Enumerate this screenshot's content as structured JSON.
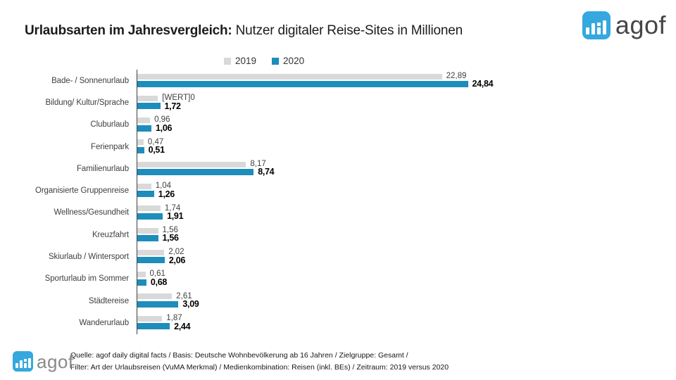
{
  "title": {
    "bold": "Urlaubsarten im Jahresvergleich:",
    "regular": " Nutzer digitaler Reise-Sites in Millionen"
  },
  "logo": {
    "text": "agof",
    "brand_blue": "#35a8df"
  },
  "legend": {
    "items": [
      {
        "label": "2019",
        "color": "#d9d9d9"
      },
      {
        "label": "2020",
        "color": "#1d8dbb"
      }
    ]
  },
  "chart_data": {
    "type": "bar",
    "orientation": "horizontal",
    "title": "Urlaubsarten im Jahresvergleich: Nutzer digitaler Reise-Sites in Millionen",
    "unit": "Millionen Nutzer",
    "xlim": [
      0,
      25.5
    ],
    "grid": false,
    "legend_position": "top-center",
    "categories": [
      "Bade- / Sonnenurlaub",
      "Bildung/ Kultur/Sprache",
      "Cluburlaub",
      "Ferienpark",
      "Familienurlaub",
      "Organisierte Gruppenreise",
      "Wellness/Gesundheit",
      "Kreuzfahrt",
      "Skiurlaub / Wintersport",
      "Sporturlaub im Sommer",
      "Städtereise",
      "Wanderurlaub"
    ],
    "series": [
      {
        "name": "2019",
        "color": "#d9d9d9",
        "values": [
          22.89,
          1.55,
          0.96,
          0.47,
          8.17,
          1.04,
          1.74,
          1.56,
          2.02,
          0.61,
          2.61,
          1.87
        ],
        "labels": [
          "22,89",
          "[WERT]0",
          "0,96",
          "0,47",
          "8,17",
          "1,04",
          "1,74",
          "1,56",
          "2,02",
          "0,61",
          "2,61",
          "1,87"
        ]
      },
      {
        "name": "2020",
        "color": "#1d8dbb",
        "values": [
          24.84,
          1.72,
          1.06,
          0.51,
          8.74,
          1.26,
          1.91,
          1.56,
          2.06,
          0.68,
          3.09,
          2.44
        ],
        "labels": [
          "24,84",
          "1,72",
          "1,06",
          "0,51",
          "8,74",
          "1,26",
          "1,91",
          "1,56",
          "2,06",
          "0,68",
          "3,09",
          "2,44"
        ]
      }
    ]
  },
  "footer": {
    "logo_text": "agof",
    "line1": "Quelle: agof daily digital facts / Basis: Deutsche Wohnbevölkerung ab 16 Jahren / Zielgruppe: Gesamt /",
    "line2": "Filter: Art der Urlaubsreisen (VuMA Merkmal) / Medienkombination: Reisen (inkl. BEs) / Zeitraum: 2019 versus 2020"
  }
}
